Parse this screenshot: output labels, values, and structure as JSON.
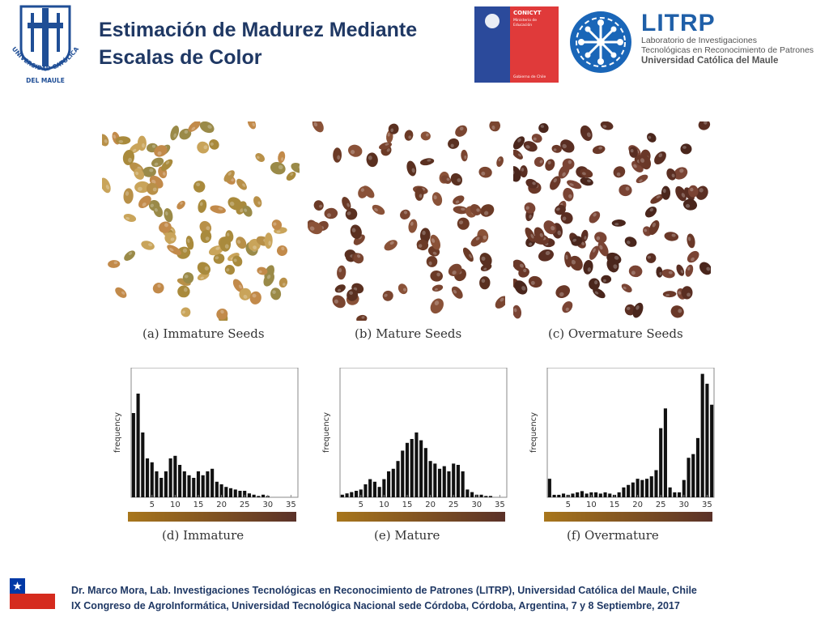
{
  "header": {
    "title_line1": "Estimación de Madurez Mediante",
    "title_line2": "Escalas de Color",
    "university_logo_text_top": "UNIVERSIDAD CATÓLICA",
    "university_logo_text_bottom": "DEL MAULE",
    "conicyt": {
      "name": "CONICYT",
      "sub1": "Ministerio de",
      "sub2": "Educación",
      "footer": "Gobierno de Chile"
    },
    "litrp": {
      "name": "LITRP",
      "line1": "Laboratorio de Investigaciones",
      "line2": "Tecnológicas en Reconocimiento de Patrones",
      "line3": "Universidad Católica del Maule"
    }
  },
  "seed_panels": [
    {
      "caption": "(a) Immature Seeds",
      "palette": [
        "#c9a45a",
        "#b89048",
        "#a98a3c",
        "#9a8a48",
        "#c28a4a"
      ],
      "count": 95
    },
    {
      "caption": "(b) Mature Seeds",
      "palette": [
        "#6b3a26",
        "#7a4530",
        "#5a3020",
        "#8a5238"
      ],
      "count": 78
    },
    {
      "caption": "(c) Overmature Seeds",
      "palette": [
        "#5a2e22",
        "#6a3828",
        "#4a261c",
        "#7a4434"
      ],
      "count": 105
    }
  ],
  "histograms": [
    {
      "caption": "(d) Immature",
      "ylabel": "frequency",
      "xticks": [
        "5",
        "10",
        "15",
        "20",
        "25",
        "30",
        "35"
      ],
      "gradient": [
        "#a8761c",
        "#5a3128"
      ]
    },
    {
      "caption": "(e) Mature",
      "ylabel": "frequency",
      "xticks": [
        "5",
        "10",
        "15",
        "20",
        "25",
        "30",
        "35"
      ],
      "gradient": [
        "#a8761c",
        "#5a3128"
      ]
    },
    {
      "caption": "(f) Overmature",
      "ylabel": "frequency",
      "xticks": [
        "5",
        "10",
        "15",
        "20",
        "25",
        "30",
        "35"
      ],
      "gradient": [
        "#a8761c",
        "#5a3128"
      ]
    }
  ],
  "chart_data": [
    {
      "type": "bar",
      "x": [
        1,
        2,
        3,
        4,
        5,
        6,
        7,
        8,
        9,
        10,
        11,
        12,
        13,
        14,
        15,
        16,
        17,
        18,
        19,
        20,
        21,
        22,
        23,
        24,
        25,
        26,
        27,
        28,
        29,
        30,
        31,
        32,
        33,
        34,
        35,
        36
      ],
      "values": [
        0.65,
        0.8,
        0.5,
        0.3,
        0.27,
        0.2,
        0.15,
        0.2,
        0.3,
        0.32,
        0.25,
        0.2,
        0.17,
        0.15,
        0.2,
        0.17,
        0.2,
        0.22,
        0.12,
        0.1,
        0.08,
        0.07,
        0.06,
        0.05,
        0.05,
        0.03,
        0.02,
        0.01,
        0.02,
        0.01,
        0,
        0,
        0,
        0,
        0,
        0
      ],
      "ylabel": "frequency",
      "xlabel": "",
      "xlim": [
        0.5,
        36.5
      ],
      "ylim": [
        0,
        1
      ]
    },
    {
      "type": "bar",
      "x": [
        1,
        2,
        3,
        4,
        5,
        6,
        7,
        8,
        9,
        10,
        11,
        12,
        13,
        14,
        15,
        16,
        17,
        18,
        19,
        20,
        21,
        22,
        23,
        24,
        25,
        26,
        27,
        28,
        29,
        30,
        31,
        32,
        33,
        34,
        35,
        36
      ],
      "values": [
        0.02,
        0.03,
        0.04,
        0.05,
        0.06,
        0.1,
        0.14,
        0.12,
        0.08,
        0.14,
        0.2,
        0.22,
        0.28,
        0.36,
        0.42,
        0.45,
        0.5,
        0.44,
        0.38,
        0.28,
        0.26,
        0.22,
        0.24,
        0.2,
        0.26,
        0.25,
        0.2,
        0.06,
        0.04,
        0.02,
        0.02,
        0.01,
        0.01,
        0,
        0,
        0
      ],
      "ylabel": "frequency",
      "xlabel": "",
      "xlim": [
        0.5,
        36.5
      ],
      "ylim": [
        0,
        1
      ]
    },
    {
      "type": "bar",
      "x": [
        1,
        2,
        3,
        4,
        5,
        6,
        7,
        8,
        9,
        10,
        11,
        12,
        13,
        14,
        15,
        16,
        17,
        18,
        19,
        20,
        21,
        22,
        23,
        24,
        25,
        26,
        27,
        28,
        29,
        30,
        31,
        32,
        33,
        34,
        35,
        36
      ],
      "values": [
        0.15,
        0.02,
        0.02,
        0.03,
        0.02,
        0.03,
        0.04,
        0.05,
        0.03,
        0.04,
        0.04,
        0.03,
        0.04,
        0.03,
        0.02,
        0.04,
        0.08,
        0.1,
        0.12,
        0.15,
        0.14,
        0.15,
        0.17,
        0.22,
        0.56,
        0.72,
        0.08,
        0.04,
        0.04,
        0.14,
        0.32,
        0.35,
        0.48,
        1.0,
        0.92,
        0.75
      ],
      "ylabel": "frequency",
      "xlabel": "",
      "xlim": [
        0.5,
        36.5
      ],
      "ylim": [
        0,
        1.05
      ]
    }
  ],
  "footer": {
    "line1": "Dr. Marco Mora, Lab.  Investigaciones Tecnológicas en Reconocimiento de Patrones (LITRP), Universidad Católica del Maule, Chile",
    "line2": "IX Congreso de AgroInformática, Universidad Tecnológica Nacional sede Córdoba, Córdoba, Argentina, 7 y 8 Septiembre, 2017"
  }
}
